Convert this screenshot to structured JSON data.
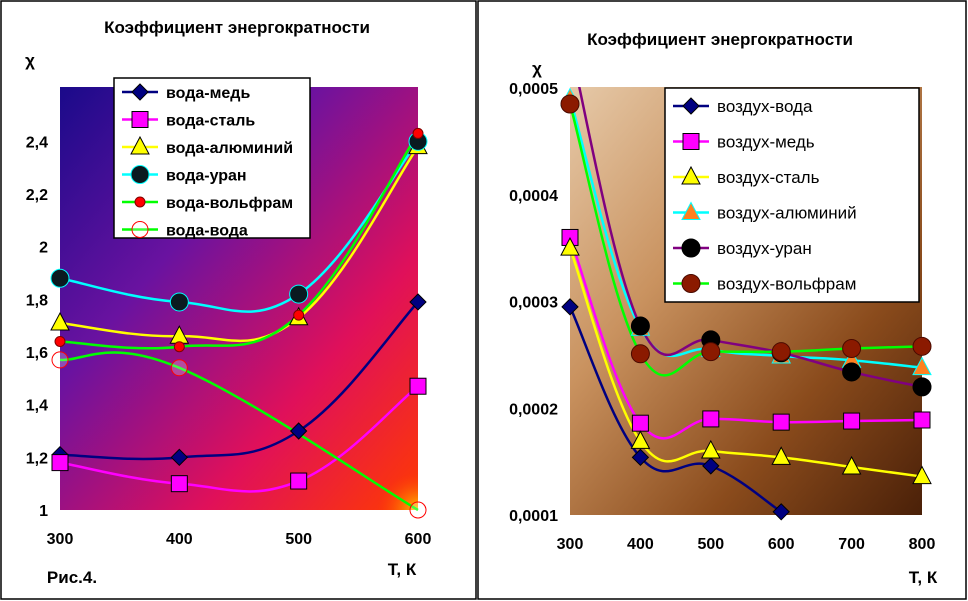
{
  "chart_data": [
    {
      "type": "line",
      "title": "Коэффициент энергократности",
      "ylabel": "χ",
      "xlabel": "Т, К",
      "note": "Рис.4.",
      "x": [
        300,
        400,
        500,
        600
      ],
      "xticks": [
        "300",
        "400",
        "500",
        "600"
      ],
      "yticks": [
        "1",
        "1,2",
        "1,4",
        "1,6",
        "1,8",
        "2",
        "2,2",
        "2,4"
      ],
      "ylim": [
        1,
        2.5
      ],
      "legend": "top-center",
      "background": "gradient purple-red",
      "series": [
        {
          "name": "вода-медь",
          "values": [
            1.21,
            1.2,
            1.3,
            1.79
          ],
          "color": "#000080",
          "marker": "diamond"
        },
        {
          "name": "вода-сталь",
          "values": [
            1.18,
            1.1,
            1.11,
            1.47
          ],
          "color": "#ff00ff",
          "marker": "square"
        },
        {
          "name": "вода-алюминий",
          "values": [
            1.71,
            1.66,
            1.73,
            2.38
          ],
          "color": "#ffff00",
          "marker": "triangle"
        },
        {
          "name": "вода-уран",
          "values": [
            1.88,
            1.79,
            1.82,
            2.4
          ],
          "color": "#00ffff",
          "marker": "circle-dark"
        },
        {
          "name": "вода-вольфрам",
          "values": [
            1.64,
            1.62,
            1.74,
            2.43
          ],
          "color": "#00ff00",
          "marker": "dot-red"
        },
        {
          "name": "вода-вода",
          "values": [
            1.57,
            1.54,
            null,
            1.0
          ],
          "color": "#00ff00",
          "marker": "circle-open"
        }
      ]
    },
    {
      "type": "line",
      "title": "Коэффициент энергократности",
      "ylabel": "χ",
      "xlabel": "Т, К",
      "x": [
        300,
        400,
        500,
        600,
        700,
        800
      ],
      "xticks": [
        "300",
        "400",
        "500",
        "600",
        "700",
        "800"
      ],
      "yticks": [
        "0,0001",
        "0,0002",
        "0,0003",
        "0,0004",
        "0,0005"
      ],
      "ylim": [
        0.0001,
        0.0005
      ],
      "legend": "top-right",
      "background": "gradient brown",
      "series": [
        {
          "name": "воздух-вода",
          "values": [
            0.000295,
            0.000154,
            0.000146,
            0.000103,
            null,
            null
          ],
          "color": "#000080",
          "marker": "diamond"
        },
        {
          "name": "воздух-медь",
          "values": [
            0.00036,
            0.000186,
            0.00019,
            0.000187,
            0.000188,
            0.000189
          ],
          "color": "#ff00ff",
          "marker": "square"
        },
        {
          "name": "воздух-сталь",
          "values": [
            0.00035,
            0.000169,
            0.00016,
            0.000154,
            0.000145,
            0.000136
          ],
          "color": "#ffff00",
          "marker": "triangle"
        },
        {
          "name": "воздух-алюминий",
          "values": [
            0.00049,
            0.000275,
            0.000255,
            0.000249,
            0.000245,
            0.000238
          ],
          "color": "#00ffff",
          "marker": "triangle-orange"
        },
        {
          "name": "воздух-уран",
          "values": [
            0.00054,
            0.000277,
            0.000264,
            0.000252,
            0.000234,
            0.00022
          ],
          "color": "#800080",
          "marker": "dot-black"
        },
        {
          "name": "воздух-вольфрам",
          "values": [
            0.000485,
            0.000251,
            0.000253,
            0.000253,
            0.000256,
            0.000258
          ],
          "color": "#00ff00",
          "marker": "dot-brown"
        }
      ]
    }
  ]
}
